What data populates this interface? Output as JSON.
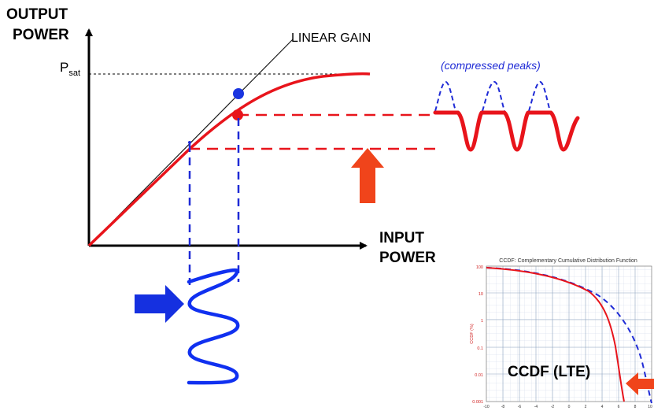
{
  "diagram": {
    "y_axis_label": [
      "OUTPUT",
      "POWER"
    ],
    "x_axis_label": [
      "INPUT",
      "POWER"
    ],
    "linear_gain_label": "LINEAR GAIN",
    "psat_label": "P",
    "psat_subscript": "sat",
    "compressed_peaks_label": "(compressed peaks)",
    "ccdf_label": "CCDF (LTE)",
    "colors": {
      "axis": "#000000",
      "curve": "#e8141b",
      "linear": "#1a1a1a",
      "dashed_blue": "#1f2bd6",
      "dashed_red": "#e8141b",
      "arrow_blue": "#1530e0",
      "arrow_orange": "#f0441b",
      "point_blue": "#1a35e0",
      "point_red": "#e8141b"
    }
  },
  "inset": {
    "title": "CCDF: Complementary Cumulative Distribution Function",
    "y_ticks": [
      "100",
      "10",
      "1",
      "0.1",
      "0.01",
      "0.001"
    ],
    "y_axis_label": "CCDF (%)",
    "x_ticks": [
      "-10",
      "-8",
      "-6",
      "-4",
      "-2",
      "0",
      "2",
      "4",
      "6",
      "8",
      "10"
    ]
  }
}
